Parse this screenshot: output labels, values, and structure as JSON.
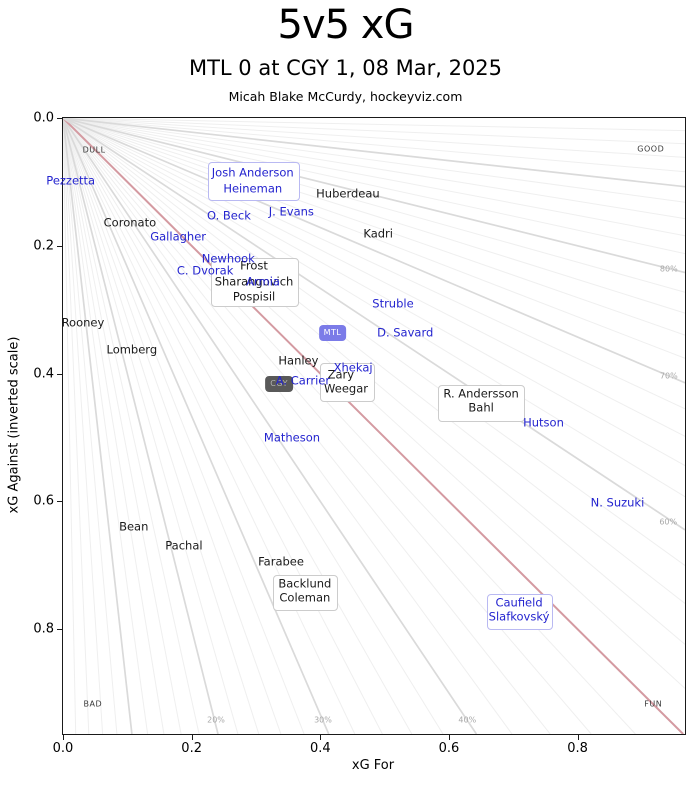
{
  "header": {
    "title": "5v5 xG",
    "subtitle": "MTL 0 at CGY 1, 08 Mar, 2025",
    "attribution": "Micah Blake McCurdy, hockeyviz.com"
  },
  "chart_data": {
    "type": "scatter",
    "title": "5v5 xG",
    "xlabel": "xG For",
    "ylabel": "xG Against (inverted scale)",
    "xlim": [
      0,
      0.967
    ],
    "ylim": [
      0,
      0.964
    ],
    "y_inverted": true,
    "grid": "radial-percentage-fan-from-origin",
    "x_ticks": [
      "0.0",
      "0.2",
      "0.4",
      "0.6",
      "0.8"
    ],
    "x_tick_values": [
      0,
      0.2,
      0.4,
      0.6,
      0.8
    ],
    "y_ticks": [
      "0.0",
      "0.2",
      "0.4",
      "0.6",
      "0.8"
    ],
    "y_tick_values": [
      0,
      0.2,
      0.4,
      0.6,
      0.8
    ],
    "fan": {
      "pct_step": 2,
      "major_step": 10,
      "highlight_pct": 50,
      "highlight_color": "#d49aa1"
    },
    "corner_labels": [
      {
        "text": "DULL",
        "fx": 0.05,
        "fy": 0.052
      },
      {
        "text": "GOOD",
        "fx": 0.945,
        "fy": 0.05
      },
      {
        "text": "BAD",
        "fx": 0.048,
        "fy": 0.951
      },
      {
        "text": "FUN",
        "fx": 0.949,
        "fy": 0.951
      }
    ],
    "pct_labels": [
      {
        "text": "20%",
        "fx": 0.246,
        "fy": 0.977
      },
      {
        "text": "30%",
        "fx": 0.418,
        "fy": 0.977
      },
      {
        "text": "40%",
        "fx": 0.65,
        "fy": 0.977
      },
      {
        "text": "60%",
        "fx": 0.973,
        "fy": 0.656
      },
      {
        "text": "70%",
        "fx": 0.974,
        "fy": 0.419
      },
      {
        "text": "80%",
        "fx": 0.974,
        "fy": 0.245
      }
    ],
    "team_badges": [
      {
        "team": "MTL",
        "x": 0.419,
        "y": 0.336,
        "bg": "#7b7be8",
        "fg": "#ffffff"
      },
      {
        "team": "CGY",
        "x": 0.336,
        "y": 0.416,
        "bg": "#595959",
        "fg": "#b3b3b3"
      }
    ],
    "series": [
      {
        "name": "CGY skaters",
        "color": "#1a1a1a",
        "points": [
          {
            "label": "Huberdeau",
            "x": 0.443,
            "y": 0.119
          },
          {
            "label": "Coronato",
            "x": 0.104,
            "y": 0.164
          },
          {
            "label": "Kadri",
            "x": 0.49,
            "y": 0.182
          },
          {
            "label": "Frost",
            "x": 0.297,
            "y": 0.232
          },
          {
            "label": "Sharangovich",
            "x": 0.297,
            "y": 0.257
          },
          {
            "label": "Pospisil",
            "x": 0.297,
            "y": 0.28
          },
          {
            "label": "Rooney",
            "x": 0.031,
            "y": 0.321
          },
          {
            "label": "Lomberg",
            "x": 0.107,
            "y": 0.363
          },
          {
            "label": "Hanley",
            "x": 0.366,
            "y": 0.38
          },
          {
            "label": "Zary",
            "x": 0.432,
            "y": 0.402
          },
          {
            "label": "Weegar",
            "x": 0.44,
            "y": 0.424
          },
          {
            "label": "R. Andersson",
            "x": 0.65,
            "y": 0.432
          },
          {
            "label": "Bahl",
            "x": 0.65,
            "y": 0.454
          },
          {
            "label": "Bean",
            "x": 0.11,
            "y": 0.64
          },
          {
            "label": "Pachal",
            "x": 0.188,
            "y": 0.67
          },
          {
            "label": "Farabee",
            "x": 0.339,
            "y": 0.695
          },
          {
            "label": "Backlund",
            "x": 0.376,
            "y": 0.729
          },
          {
            "label": "Coleman",
            "x": 0.376,
            "y": 0.751
          }
        ]
      },
      {
        "name": "MTL skaters",
        "color": "#2424cf",
        "points": [
          {
            "label": "Pezzetta",
            "x": 0.012,
            "y": 0.099
          },
          {
            "label": "Josh Anderson",
            "x": 0.295,
            "y": 0.086
          },
          {
            "label": "Heineman",
            "x": 0.295,
            "y": 0.111
          },
          {
            "label": "O. Beck",
            "x": 0.258,
            "y": 0.153
          },
          {
            "label": "J. Evans",
            "x": 0.355,
            "y": 0.147
          },
          {
            "label": "Gallagher",
            "x": 0.179,
            "y": 0.186
          },
          {
            "label": "Newhook",
            "x": 0.257,
            "y": 0.221
          },
          {
            "label": "C. Dvorak",
            "x": 0.221,
            "y": 0.239
          },
          {
            "label": "Armia",
            "x": 0.311,
            "y": 0.257
          },
          {
            "label": "Struble",
            "x": 0.513,
            "y": 0.291
          },
          {
            "label": "D. Savard",
            "x": 0.532,
            "y": 0.336
          },
          {
            "label": "Xhekaj",
            "x": 0.451,
            "y": 0.391
          },
          {
            "label": "A. Carrier",
            "x": 0.373,
            "y": 0.412
          },
          {
            "label": "Matheson",
            "x": 0.356,
            "y": 0.501
          },
          {
            "label": "Hutson",
            "x": 0.747,
            "y": 0.477
          },
          {
            "label": "N. Suzuki",
            "x": 0.862,
            "y": 0.602
          },
          {
            "label": "Caufield",
            "x": 0.709,
            "y": 0.759
          },
          {
            "label": "Slafkovský",
            "x": 0.709,
            "y": 0.781
          }
        ]
      }
    ],
    "group_boxes": [
      {
        "id": "anderson-heineman",
        "x1": 0.2256,
        "y1": 0.0689,
        "x2": 0.3655,
        "y2": 0.1268,
        "border": "#b9b9f2"
      },
      {
        "id": "frost-sharangovich-pospisil",
        "x1": 0.2302,
        "y1": 0.2191,
        "x2": 0.3639,
        "y2": 0.2926,
        "border": "#cccccc"
      },
      {
        "id": "zary-weegar",
        "x1": 0.3997,
        "y1": 0.3834,
        "x2": 0.4821,
        "y2": 0.4413,
        "border": "#cccccc"
      },
      {
        "id": "andersson-bahl",
        "x1": 0.5832,
        "y1": 0.4178,
        "x2": 0.7154,
        "y2": 0.4726,
        "border": "#cccccc"
      },
      {
        "id": "backlund-coleman",
        "x1": 0.3266,
        "y1": 0.7152,
        "x2": 0.4246,
        "y2": 0.7684,
        "border": "#cccccc"
      },
      {
        "id": "caufield-slafkovsky",
        "x1": 0.6594,
        "y1": 0.7449,
        "x2": 0.759,
        "y2": 0.7981,
        "border": "#b9b9f2"
      }
    ]
  }
}
